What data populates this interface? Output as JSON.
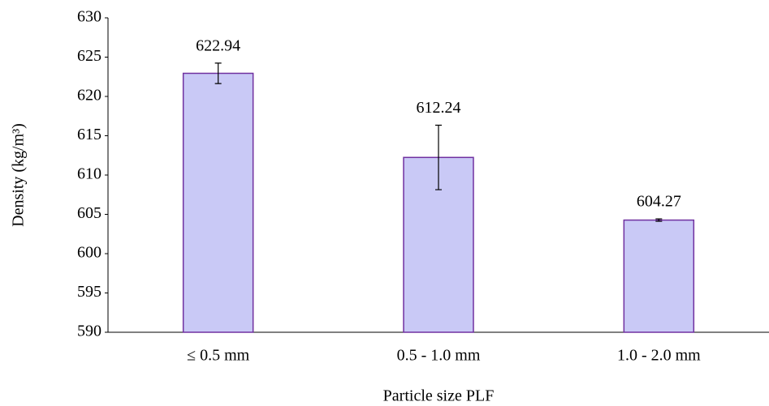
{
  "chart_data": {
    "type": "bar",
    "x_label": "Particle size PLF",
    "y_label": "Density (kg/m³)",
    "categories": [
      "≤ 0.5 mm",
      "0.5 - 1.0 mm",
      "1.0 - 2.0 mm"
    ],
    "values": [
      622.94,
      612.24,
      604.27
    ],
    "errors": [
      1.3,
      4.1,
      0.15
    ],
    "color": "#c9c9f6",
    "edge_color": "#7030a0",
    "ylim": [
      590,
      630
    ],
    "yticks": [
      590,
      595,
      600,
      605,
      610,
      615,
      620,
      625,
      630
    ],
    "grid": false
  }
}
